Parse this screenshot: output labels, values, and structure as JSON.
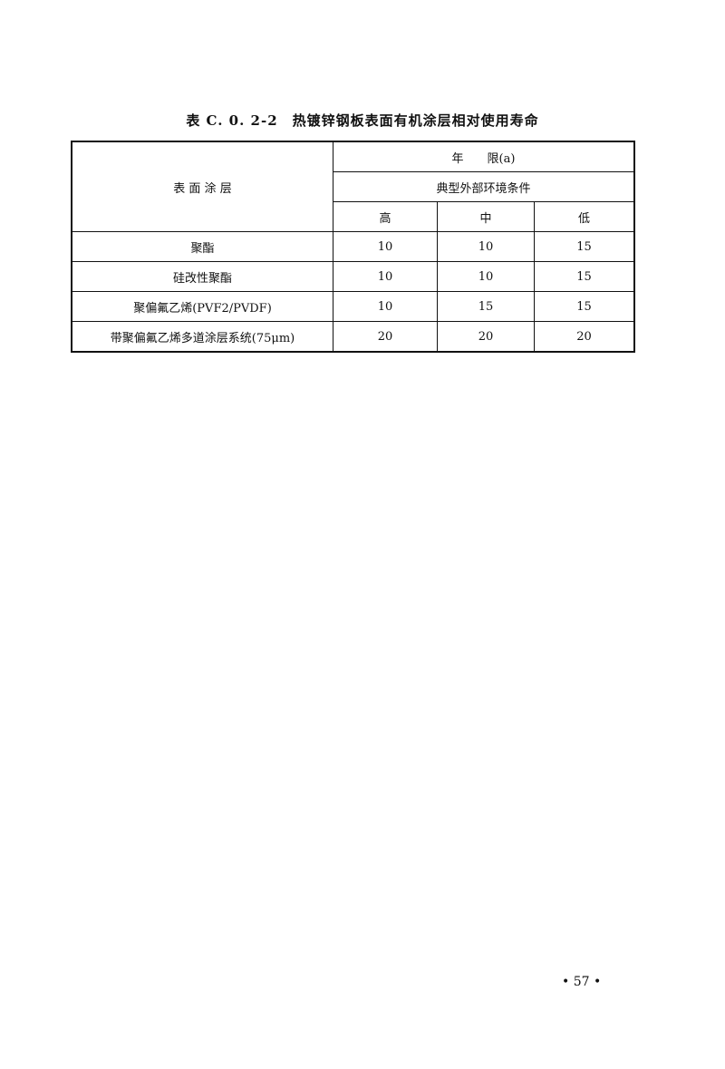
{
  "title": {
    "number": "表 C. 0. 2-2",
    "text": "热镀锌钢板表面有机涂层相对使用寿命"
  },
  "table": {
    "header": {
      "coating": "表 面 涂 层",
      "years": "年　　限(a)",
      "environment": "典型外部环境条件",
      "levels": [
        "高",
        "中",
        "低"
      ]
    },
    "rows": [
      {
        "coating": "聚酯",
        "values": [
          "10",
          "10",
          "15"
        ]
      },
      {
        "coating": "硅改性聚酯",
        "values": [
          "10",
          "10",
          "15"
        ]
      },
      {
        "coating": "聚偏氟乙烯(PVF2/PVDF)",
        "values": [
          "10",
          "15",
          "15"
        ]
      },
      {
        "coating": "带聚偏氟乙烯多道涂层系统(75μm)",
        "values": [
          "20",
          "20",
          "20"
        ]
      }
    ]
  },
  "page_number": "• 57 •"
}
